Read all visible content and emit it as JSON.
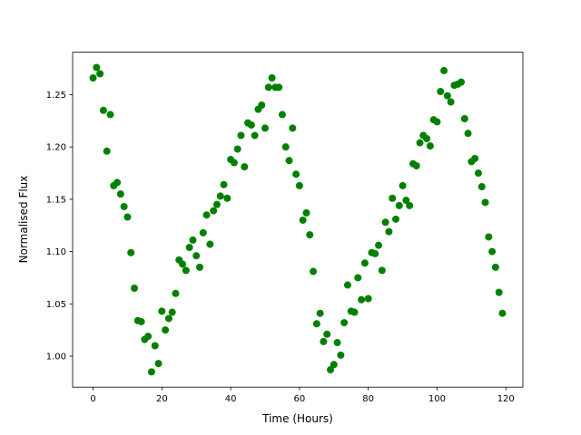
{
  "chart_data": {
    "type": "scatter",
    "xlabel": "Time (Hours)",
    "ylabel": "Normalised Flux",
    "color": "#008000",
    "x": [
      0,
      1,
      2,
      3,
      4,
      5,
      6,
      7,
      8,
      9,
      10,
      11,
      12,
      13,
      14,
      15,
      16,
      17,
      18,
      19,
      20,
      21,
      22,
      23,
      24,
      25,
      26,
      27,
      28,
      29,
      30,
      31,
      32,
      33,
      34,
      35,
      36,
      37,
      38,
      39,
      40,
      41,
      42,
      43,
      44,
      45,
      46,
      47,
      48,
      49,
      50,
      51,
      52,
      53,
      54,
      55,
      56,
      57,
      58,
      59,
      60,
      61,
      62,
      63,
      64,
      65,
      66,
      67,
      68,
      69,
      70,
      71,
      72,
      73,
      74,
      75,
      76,
      77,
      78,
      79,
      80,
      81,
      82,
      83,
      84,
      85,
      86,
      87,
      88,
      89,
      90,
      91,
      92,
      93,
      94,
      95,
      96,
      97,
      98,
      99,
      100,
      101,
      102,
      103,
      104,
      105,
      106,
      107,
      108,
      109,
      110,
      111,
      112,
      113,
      114,
      115,
      116,
      117,
      118,
      119
    ],
    "values": [
      1.266,
      1.276,
      1.27,
      1.235,
      1.196,
      1.231,
      1.163,
      1.166,
      1.155,
      1.143,
      1.133,
      1.099,
      1.065,
      1.034,
      1.033,
      1.016,
      1.019,
      0.985,
      1.01,
      0.993,
      1.043,
      1.025,
      1.036,
      1.042,
      1.06,
      1.092,
      1.088,
      1.082,
      1.104,
      1.111,
      1.096,
      1.085,
      1.118,
      1.135,
      1.107,
      1.139,
      1.145,
      1.153,
      1.164,
      1.151,
      1.188,
      1.185,
      1.198,
      1.211,
      1.181,
      1.223,
      1.221,
      1.211,
      1.236,
      1.24,
      1.218,
      1.257,
      1.266,
      1.257,
      1.257,
      1.231,
      1.2,
      1.187,
      1.218,
      1.174,
      1.163,
      1.13,
      1.137,
      1.116,
      1.081,
      1.031,
      1.041,
      1.014,
      1.021,
      0.987,
      0.992,
      1.013,
      1.001,
      1.032,
      1.068,
      1.043,
      1.042,
      1.075,
      1.054,
      1.089,
      1.055,
      1.099,
      1.098,
      1.106,
      1.082,
      1.128,
      1.119,
      1.151,
      1.131,
      1.144,
      1.163,
      1.149,
      1.144,
      1.184,
      1.182,
      1.204,
      1.211,
      1.208,
      1.201,
      1.226,
      1.224,
      1.253,
      1.273,
      1.249,
      1.243,
      1.259,
      1.26,
      1.262,
      1.227,
      1.213,
      1.186,
      1.189,
      1.175,
      1.162,
      1.147,
      1.114,
      1.1,
      1.085,
      1.061,
      1.041
    ],
    "xlim": [
      -5.95,
      124.95
    ],
    "ylim": [
      0.9704,
      1.2906
    ],
    "xticks": [
      0,
      20,
      40,
      60,
      80,
      100,
      120
    ],
    "yticks": [
      {
        "value": 1.0,
        "label": "1.00"
      },
      {
        "value": 1.05,
        "label": "1.05"
      },
      {
        "value": 1.1,
        "label": "1.10"
      },
      {
        "value": 1.15,
        "label": "1.15"
      },
      {
        "value": 1.2,
        "label": "1.20"
      },
      {
        "value": 1.25,
        "label": "1.25"
      }
    ],
    "grid": false
  }
}
